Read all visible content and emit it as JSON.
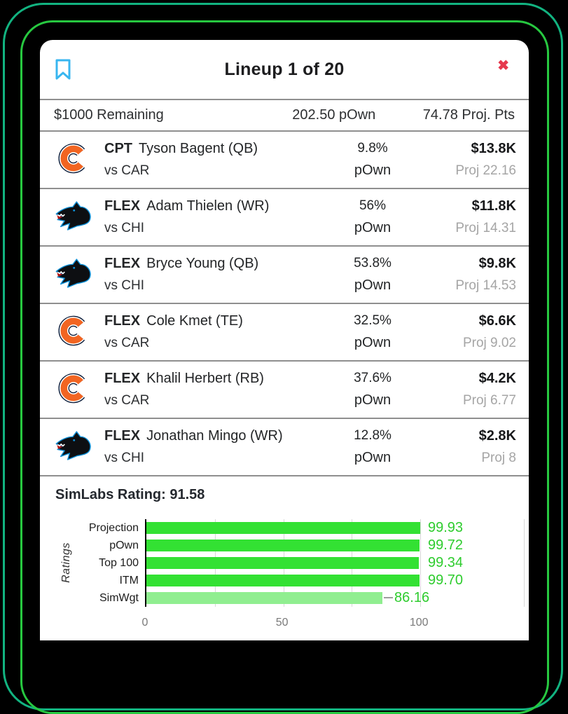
{
  "frame": {
    "outer_color": "#12b380",
    "inner_color": "#27c840"
  },
  "header": {
    "title": "Lineup 1 of 20",
    "bookmark_color": "#38b6f0",
    "close_glyph": "✖",
    "close_color": "#e6394e"
  },
  "summary": {
    "remaining": "$1000 Remaining",
    "pown_total": "202.50 pOwn",
    "proj_total": "74.78 Proj. Pts"
  },
  "roster": {
    "pown_label": "pOwn",
    "players": [
      {
        "team": "bears",
        "slot": "CPT",
        "name": "Tyson Bagent (QB)",
        "vs": "vs CAR",
        "pown": "9.8%",
        "salary": "$13.8K",
        "proj": "Proj 22.16"
      },
      {
        "team": "panthers",
        "slot": "FLEX",
        "name": "Adam Thielen (WR)",
        "vs": "vs CHI",
        "pown": "56%",
        "salary": "$11.8K",
        "proj": "Proj 14.31"
      },
      {
        "team": "panthers",
        "slot": "FLEX",
        "name": "Bryce Young (QB)",
        "vs": "vs CHI",
        "pown": "53.8%",
        "salary": "$9.8K",
        "proj": "Proj 14.53"
      },
      {
        "team": "bears",
        "slot": "FLEX",
        "name": "Cole Kmet (TE)",
        "vs": "vs CAR",
        "pown": "32.5%",
        "salary": "$6.6K",
        "proj": "Proj 9.02"
      },
      {
        "team": "bears",
        "slot": "FLEX",
        "name": "Khalil Herbert (RB)",
        "vs": "vs CAR",
        "pown": "37.6%",
        "salary": "$4.2K",
        "proj": "Proj 6.77"
      },
      {
        "team": "panthers",
        "slot": "FLEX",
        "name": "Jonathan Mingo (WR)",
        "vs": "vs CHI",
        "pown": "12.8%",
        "salary": "$2.8K",
        "proj": "Proj 8"
      }
    ]
  },
  "rating_heading": "SimLabs Rating: 91.58",
  "chart_data": {
    "type": "bar",
    "orientation": "horizontal",
    "title": "SimLabs Rating: 91.58",
    "categories": [
      "Projection",
      "pOwn",
      "Top 100",
      "ITM",
      "SimWgt"
    ],
    "values": [
      99.93,
      99.72,
      99.34,
      99.7,
      86.16
    ],
    "value_labels": [
      "99.93",
      "99.72",
      "99.34",
      "99.70",
      "86.16"
    ],
    "xlabel": "",
    "ylabel": "Ratings",
    "xlim": [
      0,
      100
    ],
    "xticks": [
      0,
      50,
      100
    ],
    "gridlines": [
      25,
      50,
      75,
      100
    ],
    "grid": true,
    "legend_position": "none",
    "bar_color": "#33e133",
    "muted_bar_color": "#90ee90",
    "muted_index": 4,
    "value_label_color": "#2ecc2e"
  }
}
